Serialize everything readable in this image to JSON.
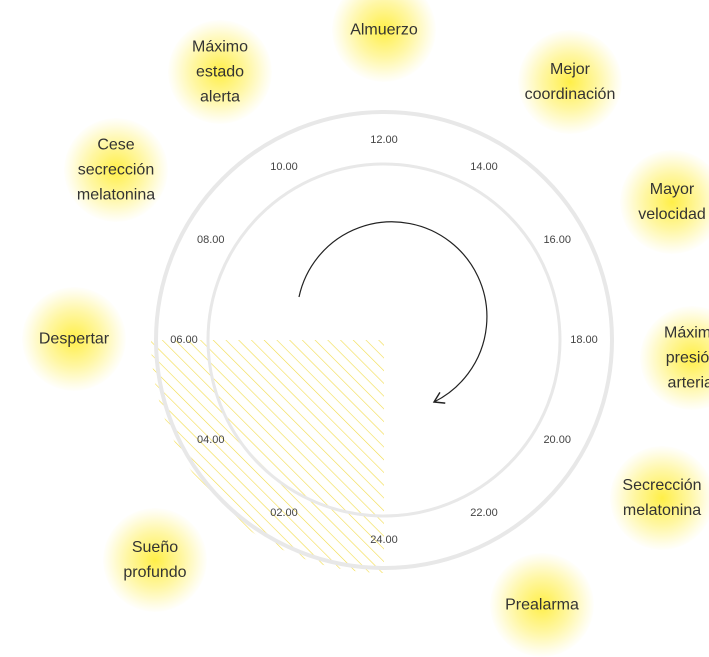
{
  "colors": {
    "ring": "#e8e8e8",
    "glow": "#ffec28",
    "hatch": "#f2dc4a",
    "arrow": "#222222",
    "text": "#333333"
  },
  "hours": [
    "12.00",
    "14.00",
    "16.00",
    "18.00",
    "20.00",
    "22.00",
    "24.00",
    "02.00",
    "04.00",
    "06.00",
    "08.00",
    "10.00"
  ],
  "events": [
    {
      "id": "almuerzo",
      "text": "Almuerzo"
    },
    {
      "id": "mejor-coordinacion",
      "text": "Mejor\ncoordinación"
    },
    {
      "id": "mayor-velocidad",
      "text": "Mayor\nvelocidad"
    },
    {
      "id": "maxima-presion-arterial",
      "text": "Máxima\npresión\narterial"
    },
    {
      "id": "secrecion-melatonina",
      "text": "Secrección\nmelatonina"
    },
    {
      "id": "prealarma",
      "text": "Prealarma"
    },
    {
      "id": "sueno-profundo",
      "text": "Sueño\nprofundo"
    },
    {
      "id": "despertar",
      "text": "Despertar"
    },
    {
      "id": "cese-secrecion-melatonina",
      "text": "Cese\nsecrección\nmelatonina"
    },
    {
      "id": "maximo-estado-alerta",
      "text": "Máximo\nestado\nalerta"
    }
  ]
}
